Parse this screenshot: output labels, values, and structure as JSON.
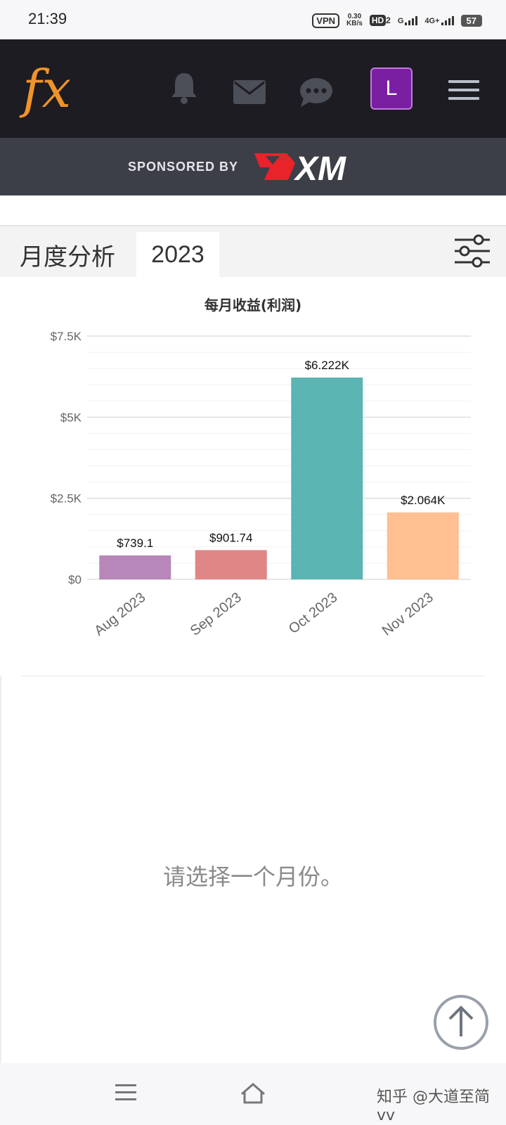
{
  "status_bar": {
    "time": "21:39",
    "vpn": "VPN",
    "speed_value": "0.30",
    "speed_unit": "KB/s",
    "hd": "HD",
    "hd_sub": "2",
    "net1": "G",
    "net2": "4G+",
    "battery": "57"
  },
  "header": {
    "logo_text": "fx",
    "avatar_letter": "L"
  },
  "sponsor": {
    "label": "SPONSORED BY",
    "brand": "XM"
  },
  "tabs": {
    "section_label": "月度分析",
    "year": "2023"
  },
  "chart_data": {
    "type": "bar",
    "title": "每月收益(利润)",
    "categories": [
      "Aug 2023",
      "Sep 2023",
      "Oct 2023",
      "Nov 2023"
    ],
    "values": [
      739.1,
      901.74,
      6222,
      2064
    ],
    "data_labels": [
      "$739.1",
      "$901.74",
      "$6.222K",
      "$2.064K"
    ],
    "y_ticks": [
      0,
      2500,
      5000,
      7500
    ],
    "y_tick_labels": [
      "$0",
      "$2.5K",
      "$5K",
      "$7.5K"
    ],
    "ylim": [
      0,
      7500
    ],
    "colors": [
      "#b687b8",
      "#e08686",
      "#5ab5b3",
      "#ffbf91"
    ],
    "grid": true,
    "legend": "none"
  },
  "empty_state": {
    "message": "请选择一个月份。"
  },
  "nav": {
    "watermark": "知乎 @大道至简vv"
  },
  "colors": {
    "header_bg": "#1c1c22",
    "sponsor_bg": "#3d3f48",
    "logo_orange": "#f0932b",
    "avatar_bg": "#7b1fa2",
    "xm_red": "#e8232a"
  }
}
